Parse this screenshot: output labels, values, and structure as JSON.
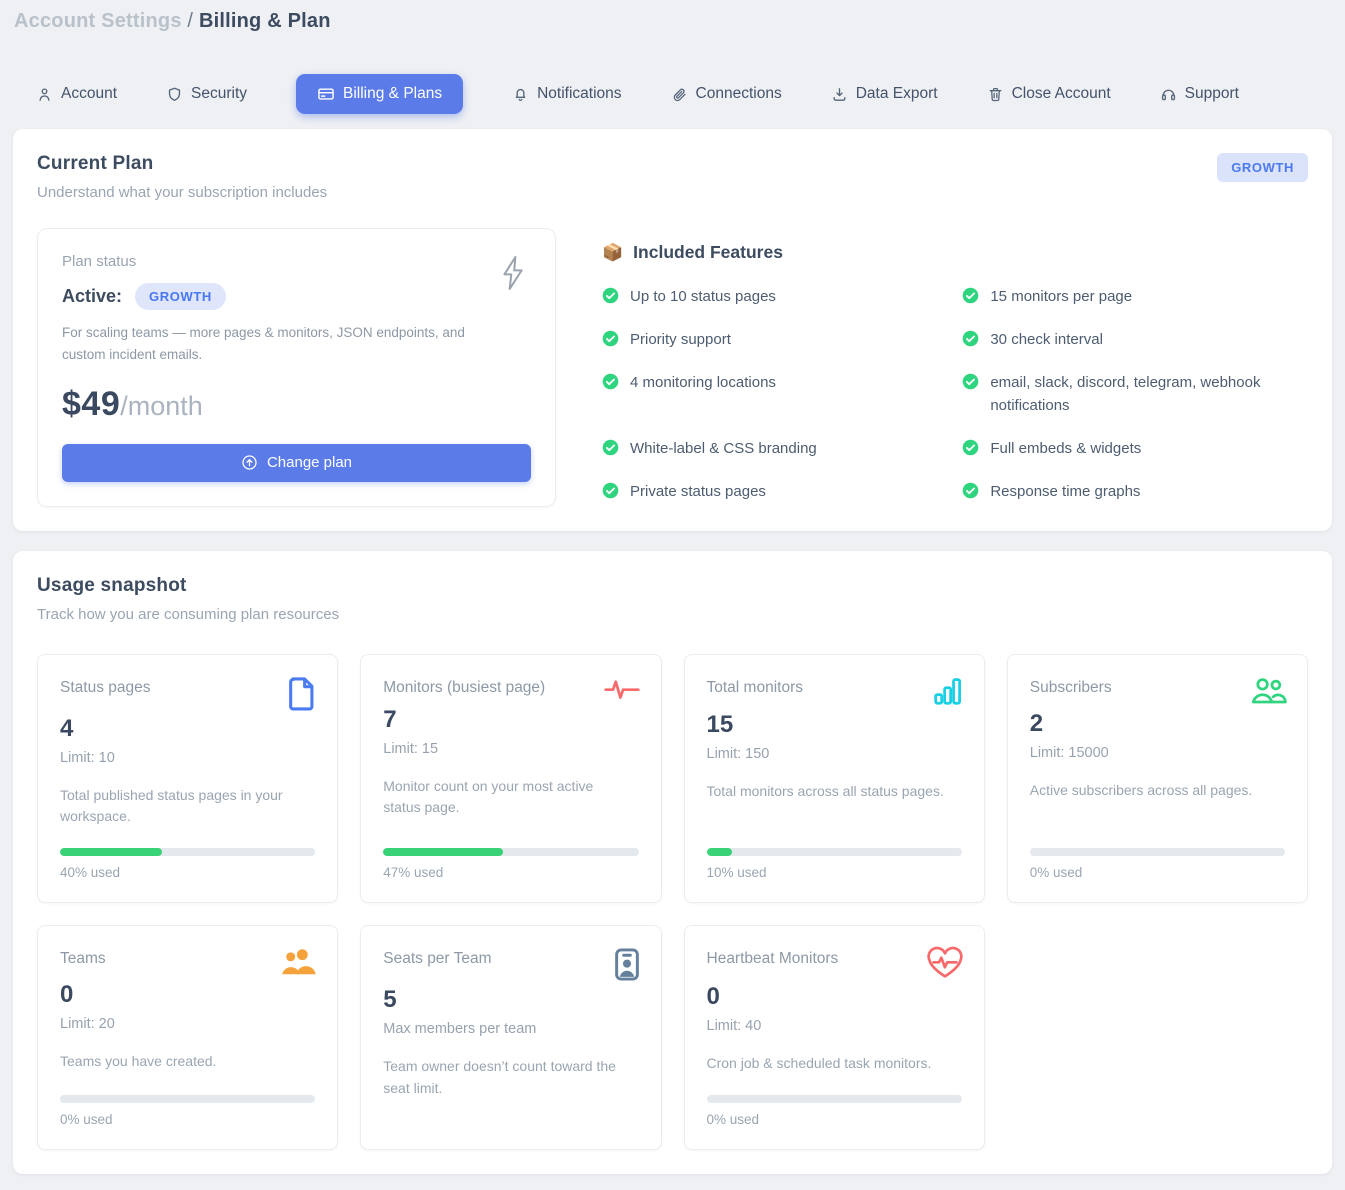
{
  "breadcrumb": {
    "section": "Account Settings",
    "separator": "/",
    "page": "Billing & Plan"
  },
  "tabs": [
    {
      "label": "Account",
      "icon": "person-icon",
      "active": false
    },
    {
      "label": "Security",
      "icon": "shield-icon",
      "active": false
    },
    {
      "label": "Billing & Plans",
      "icon": "credit-card-icon",
      "active": true
    },
    {
      "label": "Notifications",
      "icon": "bell-icon",
      "active": false
    },
    {
      "label": "Connections",
      "icon": "link-icon",
      "active": false
    },
    {
      "label": "Data Export",
      "icon": "download-icon",
      "active": false
    },
    {
      "label": "Close Account",
      "icon": "trash-icon",
      "active": false
    },
    {
      "label": "Support",
      "icon": "headset-icon",
      "active": false
    }
  ],
  "current_plan": {
    "title": "Current Plan",
    "subtitle": "Understand what your subscription includes",
    "plan_badge": "GROWTH",
    "status_label": "Plan status",
    "status_value": "Active:",
    "status_badge": "GROWTH",
    "description": "For scaling teams — more pages & monitors, JSON endpoints, and custom incident emails.",
    "price": "$49",
    "price_period": "/month",
    "change_plan_label": "Change plan",
    "change_plan_icon": "arrow-up-circle-icon",
    "decoration_icon": "lightning-bolt-icon",
    "features_title": "Included Features",
    "features_emoji": "📦",
    "features": [
      "Up to 10 status pages",
      "15 monitors per page",
      "Priority support",
      "30 check interval",
      "4 monitoring locations",
      "email, slack, discord, telegram, webhook notifications",
      "White-label & CSS branding",
      "Full embeds & widgets",
      "Private status pages",
      "Response time graphs"
    ]
  },
  "usage": {
    "title": "Usage snapshot",
    "subtitle": "Track how you are consuming plan resources",
    "cards": [
      {
        "title": "Status pages",
        "value": "4",
        "limit": "Limit: 10",
        "description": "Total published status pages in your workspace.",
        "percent": 40,
        "percent_label": "40% used",
        "icon": "document-icon",
        "icon_color": "#4a7bf0"
      },
      {
        "title": "Monitors (busiest page)",
        "value": "7",
        "limit": "Limit: 15",
        "description": "Monitor count on your most active status page.",
        "percent": 47,
        "percent_label": "47% used",
        "icon": "pulse-icon",
        "icon_color": "#f8696b"
      },
      {
        "title": "Total monitors",
        "value": "15",
        "limit": "Limit: 150",
        "description": "Total monitors across all status pages.",
        "percent": 10,
        "percent_label": "10% used",
        "icon": "bar-chart-icon",
        "icon_color": "#17d0e6"
      },
      {
        "title": "Subscribers",
        "value": "2",
        "limit": "Limit: 15000",
        "description": "Active subscribers across all pages.",
        "percent": 0,
        "percent_label": "0% used",
        "icon": "people-outline-icon",
        "icon_color": "#2fd47e"
      },
      {
        "title": "Teams",
        "value": "0",
        "limit": "Limit: 20",
        "description": "Teams you have created.",
        "percent": 0,
        "percent_label": "0% used",
        "icon": "people-filled-icon",
        "icon_color": "#f5a23c"
      },
      {
        "title": "Seats per Team",
        "value": "5",
        "limit": "Max members per team",
        "description": "Team owner doesn’t count toward the seat limit.",
        "percent": null,
        "percent_label": null,
        "icon": "id-badge-icon",
        "icon_color": "#64809c"
      },
      {
        "title": "Heartbeat Monitors",
        "value": "0",
        "limit": "Limit: 40",
        "description": "Cron job & scheduled task monitors.",
        "percent": 0,
        "percent_label": "0% used",
        "icon": "heart-pulse-icon",
        "icon_color": "#f8696b"
      }
    ]
  },
  "colors": {
    "accent_blue": "#5b7ce8",
    "badge_bg": "#dfe6fc",
    "badge_text": "#4977ef",
    "progress_green": "#3ad276",
    "check_green": "#2fd47e",
    "page_bg": "#eef0f3"
  }
}
